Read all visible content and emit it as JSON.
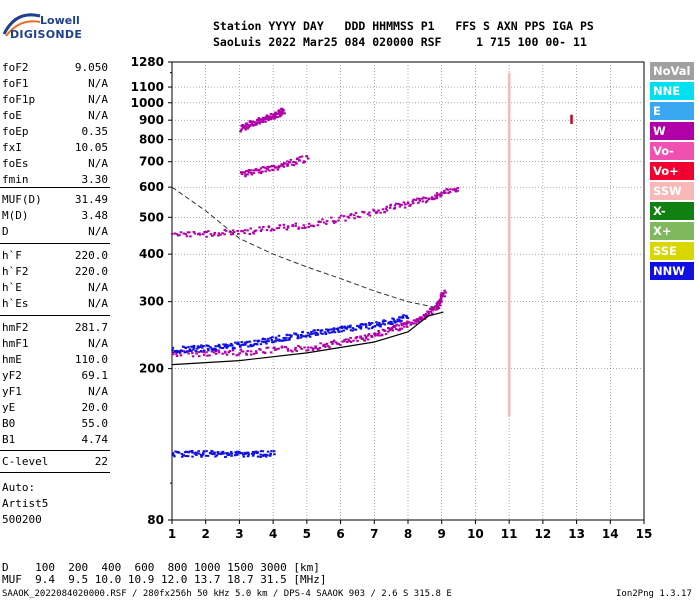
{
  "logo": {
    "line1": "Lowell",
    "line2": "DIGISONDE"
  },
  "header": {
    "line1": "Station YYYY DAY   DDD HHMMSS P1   FFS S AXN PPS IGA PS",
    "line2": "SaoLuis 2022 Mar25 084 020000 RSF     1 715 100 00- 11"
  },
  "params": {
    "group1": [
      {
        "k": "foF2",
        "v": "9.050"
      },
      {
        "k": "foF1",
        "v": "N/A"
      },
      {
        "k": "foF1p",
        "v": "N/A"
      },
      {
        "k": "foE",
        "v": "N/A"
      },
      {
        "k": "foEp",
        "v": "0.35"
      },
      {
        "k": "fxI",
        "v": "10.05"
      },
      {
        "k": "foEs",
        "v": "N/A"
      },
      {
        "k": "fmin",
        "v": "3.30"
      }
    ],
    "group2": [
      {
        "k": "MUF(D)",
        "v": "31.49"
      },
      {
        "k": "M(D)",
        "v": "3.48"
      },
      {
        "k": "D",
        "v": "N/A"
      }
    ],
    "group3": [
      {
        "k": "h`F",
        "v": "220.0"
      },
      {
        "k": "h`F2",
        "v": "220.0"
      },
      {
        "k": "h`E",
        "v": "N/A"
      },
      {
        "k": "h`Es",
        "v": "N/A"
      }
    ],
    "group4": [
      {
        "k": "hmF2",
        "v": "281.7"
      },
      {
        "k": "hmF1",
        "v": "N/A"
      },
      {
        "k": "hmE",
        "v": "110.0"
      },
      {
        "k": "yF2",
        "v": "69.1"
      },
      {
        "k": "yF1",
        "v": "N/A"
      },
      {
        "k": "yE",
        "v": "20.0"
      },
      {
        "k": "B0",
        "v": "55.0"
      },
      {
        "k": "B1",
        "v": "4.74"
      }
    ],
    "group5": [
      {
        "k": "C-level",
        "v": "22"
      }
    ],
    "auto": [
      "Auto:",
      "Artist5",
      "500200"
    ]
  },
  "legend": [
    {
      "label": "NoVal",
      "color": "#a0a0a0"
    },
    {
      "label": "NNE",
      "color": "#00e0f0"
    },
    {
      "label": "E",
      "color": "#3aa8f0"
    },
    {
      "label": "W",
      "color": "#b000a8"
    },
    {
      "label": "Vo-",
      "color": "#f050b0"
    },
    {
      "label": "Vo+",
      "color": "#f00030"
    },
    {
      "label": "SSW",
      "color": "#f8b8b8"
    },
    {
      "label": "X-",
      "color": "#108010"
    },
    {
      "label": "X+",
      "color": "#80b860"
    },
    {
      "label": "SSE",
      "color": "#d8d800"
    },
    {
      "label": "NNW",
      "color": "#1010e0"
    }
  ],
  "chart_data": {
    "type": "scatter",
    "xlim": [
      1,
      15
    ],
    "ylim": [
      80,
      1280
    ],
    "y_log": true,
    "xticks": [
      "1",
      "2",
      "3",
      "4",
      "5",
      "6",
      "7",
      "8",
      "9",
      "10",
      "11",
      "12",
      "13",
      "14",
      "15"
    ],
    "yticks": [
      80,
      200,
      300,
      400,
      500,
      600,
      700,
      800,
      900,
      1000,
      1100,
      1280
    ],
    "grid": true,
    "traces": [
      {
        "name": "F-layer O-mode (W)",
        "color": "#b000a8",
        "points": [
          [
            1,
            220
          ],
          [
            3,
            222
          ],
          [
            5,
            228
          ],
          [
            6.5,
            240
          ],
          [
            7.5,
            255
          ],
          [
            8.3,
            270
          ],
          [
            8.8,
            290
          ],
          [
            9.05,
            320
          ]
        ]
      },
      {
        "name": "F-layer (NNW)",
        "color": "#1010e0",
        "points": [
          [
            1,
            225
          ],
          [
            2,
            228
          ],
          [
            3,
            232
          ],
          [
            4,
            240
          ],
          [
            5,
            248
          ],
          [
            6,
            255
          ],
          [
            7,
            262
          ],
          [
            8,
            275
          ]
        ]
      },
      {
        "name": "Es low band (NNW)",
        "color": "#1010e0",
        "points": [
          [
            1,
            120
          ],
          [
            2,
            120
          ],
          [
            3,
            120
          ],
          [
            4,
            120
          ]
        ]
      },
      {
        "name": "Multi-hop 2F (W)",
        "color": "#b000a8",
        "points": [
          [
            1,
            450
          ],
          [
            3,
            460
          ],
          [
            5,
            480
          ],
          [
            7,
            520
          ],
          [
            8.5,
            560
          ],
          [
            9.5,
            600
          ]
        ]
      },
      {
        "name": "Multi-hop 3F (W)",
        "color": "#b000a8",
        "points": [
          [
            3,
            650
          ],
          [
            4,
            680
          ],
          [
            5,
            720
          ]
        ]
      },
      {
        "name": "Multi-hop 4F (W)",
        "color": "#b000a8",
        "points": [
          [
            3,
            860
          ],
          [
            3.5,
            900
          ],
          [
            4,
            930
          ],
          [
            4.3,
            960
          ]
        ]
      }
    ],
    "profile": {
      "solid": [
        [
          1,
          205
        ],
        [
          3,
          210
        ],
        [
          5,
          220
        ],
        [
          7,
          235
        ],
        [
          8,
          250
        ],
        [
          8.6,
          275
        ],
        [
          9.05,
          281.7
        ]
      ],
      "dashed": [
        [
          1,
          600
        ],
        [
          2,
          520
        ],
        [
          3,
          440
        ],
        [
          4,
          400
        ],
        [
          5,
          370
        ],
        [
          6,
          345
        ],
        [
          7,
          320
        ],
        [
          8,
          300
        ],
        [
          8.8,
          290
        ]
      ]
    },
    "markers": [
      {
        "x": 11.0,
        "y_from": 150,
        "y_to": 1200,
        "color": "#f8b8b8"
      },
      {
        "x": 12.85,
        "y_from": 880,
        "y_to": 930,
        "color": "#c00020"
      }
    ]
  },
  "bottom_table": {
    "row1": "D    100  200  400  600  800 1000 1500 3000 [km]",
    "row2": "MUF  9.4  9.5 10.0 10.9 12.0 13.7 18.7 31.5 [MHz]"
  },
  "footer": {
    "left": "SAAOK_2022084020000.RSF / 280fx256h 50 kHz 5.0 km / DPS-4 SAAOK 903 / 2.6 S 315.8 E",
    "right": "Ion2Png 1.3.17"
  }
}
